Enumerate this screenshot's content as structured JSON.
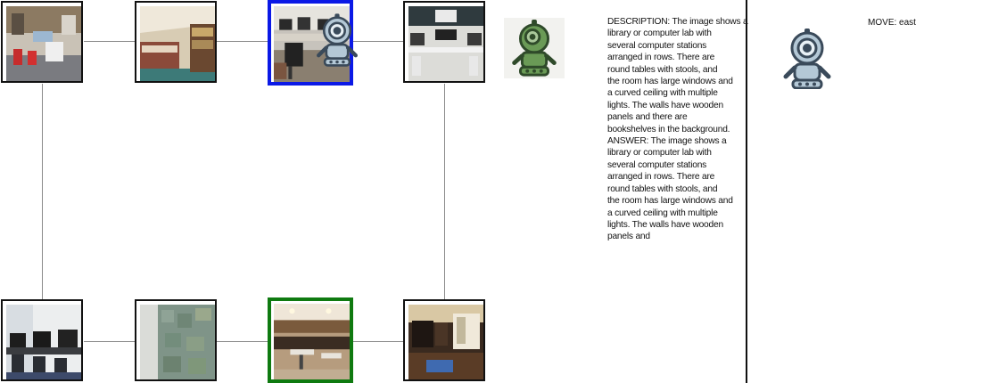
{
  "map": {
    "nodes": [
      {
        "id": "top-1",
        "scene": "classroom with red chairs and shelves",
        "state": "normal"
      },
      {
        "id": "top-2",
        "scene": "bedroom with patterned bed and bookshelf",
        "state": "normal"
      },
      {
        "id": "top-3",
        "scene": "computer lab",
        "state": "current"
      },
      {
        "id": "top-4",
        "scene": "computer lab with monitors on desks",
        "state": "normal"
      },
      {
        "id": "bottom-1",
        "scene": "computer room with black chairs",
        "state": "normal"
      },
      {
        "id": "bottom-2",
        "scene": "tiled green wall room",
        "state": "normal"
      },
      {
        "id": "bottom-3",
        "scene": "library with wooden tables",
        "state": "goal"
      },
      {
        "id": "bottom-4",
        "scene": "dark room with blue rug",
        "state": "normal"
      }
    ],
    "colors": {
      "current_border": "#0b19e6",
      "goal_border": "#0f7a10",
      "edge": "#8a8a8a"
    }
  },
  "agent": {
    "icon": "robot-icon",
    "color": "#b4c8d6"
  },
  "observer": {
    "icon": "green-robot-icon",
    "color": "#6a9a56"
  },
  "description_text": "DESCRIPTION: The image shows a\nlibrary or computer lab with\nseveral computer stations\narranged in rows. There are\nround tables with stools, and\nthe room has large windows and\na curved ceiling with multiple\nlights. The walls have wooden\npanels and there are\nbookshelves in the background.\nANSWER: The image shows a\nlibrary or computer lab with\nseveral computer stations\narranged in rows. There are\nround tables with stools, and\nthe room has large windows and\na curved ceiling with multiple\nlights. The walls have wooden\npanels and",
  "move": {
    "label": "MOVE: east"
  }
}
